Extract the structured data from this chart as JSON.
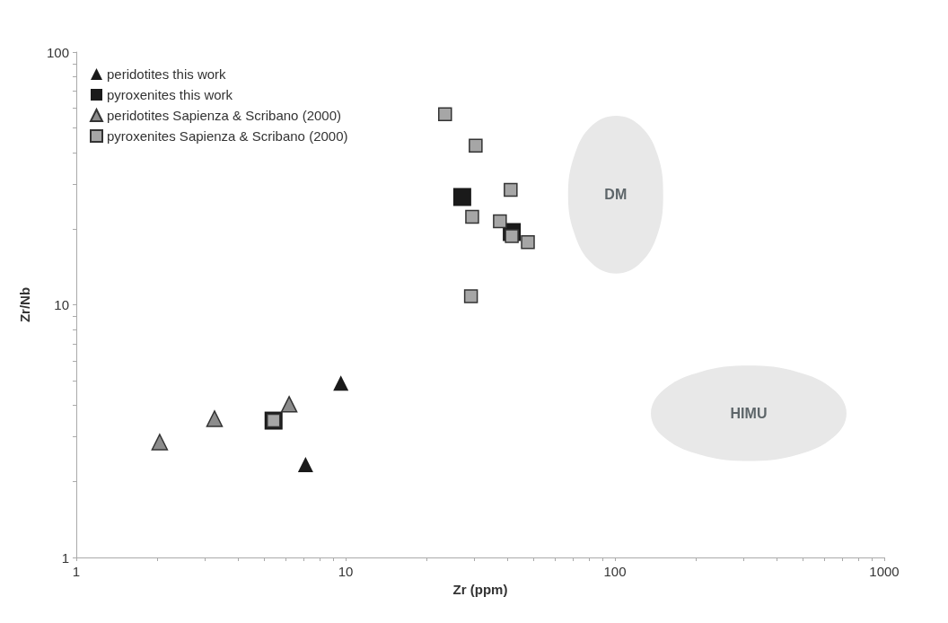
{
  "chart_data": {
    "type": "scatter",
    "xlabel": "Zr (ppm)",
    "ylabel": "Zr/Nb",
    "log": "xy",
    "grid": false,
    "legend": "top left",
    "xlim": [
      1,
      1000
    ],
    "ylim": [
      1,
      100
    ],
    "xticks": [
      1,
      {
        "value": 2,
        "label": null
      },
      {
        "value": 3,
        "label": null
      },
      {
        "value": 4,
        "label": null
      },
      {
        "value": 5,
        "label": null
      },
      {
        "value": 6,
        "label": null
      },
      {
        "value": 7,
        "label": null
      },
      {
        "value": 8,
        "label": null
      },
      {
        "value": 9,
        "label": null
      },
      10,
      {
        "value": 20,
        "label": null
      },
      {
        "value": 30,
        "label": null
      },
      {
        "value": 40,
        "label": null
      },
      {
        "value": 50,
        "label": null
      },
      {
        "value": 60,
        "label": null
      },
      {
        "value": 70,
        "label": null
      },
      {
        "value": 80,
        "label": null
      },
      {
        "value": 90,
        "label": null
      },
      100,
      {
        "value": 200,
        "label": null
      },
      {
        "value": 300,
        "label": null
      },
      {
        "value": 400,
        "label": null
      },
      {
        "value": 500,
        "label": null
      },
      {
        "value": 600,
        "label": null
      },
      {
        "value": 700,
        "label": null
      },
      {
        "value": 800,
        "label": null
      },
      {
        "value": 900,
        "label": null
      },
      1000
    ],
    "yticks": [
      1,
      {
        "value": 2,
        "label": null
      },
      {
        "value": 3,
        "label": null
      },
      {
        "value": 4,
        "label": null
      },
      {
        "value": 5,
        "label": null
      },
      {
        "value": 6,
        "label": null
      },
      {
        "value": 7,
        "label": null
      },
      {
        "value": 8,
        "label": null
      },
      {
        "value": 9,
        "label": null
      },
      10,
      {
        "value": 20,
        "label": null
      },
      {
        "value": 30,
        "label": null
      },
      {
        "value": 40,
        "label": null
      },
      {
        "value": 50,
        "label": null
      },
      {
        "value": 60,
        "label": null
      },
      {
        "value": 70,
        "label": null
      },
      {
        "value": 80,
        "label": null
      },
      {
        "value": 90,
        "label": null
      },
      100
    ],
    "series": [
      {
        "type": "area",
        "color": "#e8e8e8",
        "x": [
          151,
          144,
          124,
          101,
          82,
          70.8,
          67,
          70.8,
          82,
          101,
          124,
          144
        ],
        "values": [
          27.3,
          39.2,
          51.1,
          56,
          51.1,
          39.2,
          27.3,
          19.05,
          14.6,
          13.3,
          14.6,
          19.05
        ]
      },
      {
        "type": "area",
        "color": "#e8e8e8",
        "x": [
          724,
          648,
          477,
          314,
          207,
          152,
          136,
          152,
          207,
          314,
          477,
          648
        ],
        "values": [
          3.72,
          4.62,
          5.42,
          5.74,
          5.42,
          4.62,
          3.72,
          2.99,
          2.55,
          2.41,
          2.55,
          2.99
        ]
      },
      {
        "name": "peridotites this work",
        "color": "#1a1a1a",
        "marker": "triangle",
        "x": [
          9.6,
          7.1
        ],
        "values": [
          4.9,
          2.33
        ]
      },
      {
        "name": "pyroxenites this work",
        "color": "#1a1a1a",
        "marker": "square",
        "x": [
          5.4,
          27.1,
          41.4
        ],
        "values": [
          3.48,
          26.7,
          19.4
        ]
      },
      {
        "name": "peridotites Sapienza & Scribano (2000)",
        "color": "#8c8c8c",
        "marker": "triangle",
        "x": [
          2.04,
          3.26,
          6.17
        ],
        "values": [
          2.86,
          3.54,
          4.04
        ]
      },
      {
        "name": "pyroxenites Sapienza & Scribano (2000)",
        "color": "#a6a6a6",
        "marker": "square",
        "x": [
          23.4,
          30.4,
          41,
          29.5,
          37.4,
          41.4,
          47.5,
          29.2,
          5.4
        ],
        "values": [
          56.8,
          42.6,
          28.5,
          22.3,
          21.4,
          18.7,
          17.7,
          10.8,
          3.48
        ]
      }
    ],
    "annotations": [
      "DM",
      "HIMU"
    ]
  }
}
